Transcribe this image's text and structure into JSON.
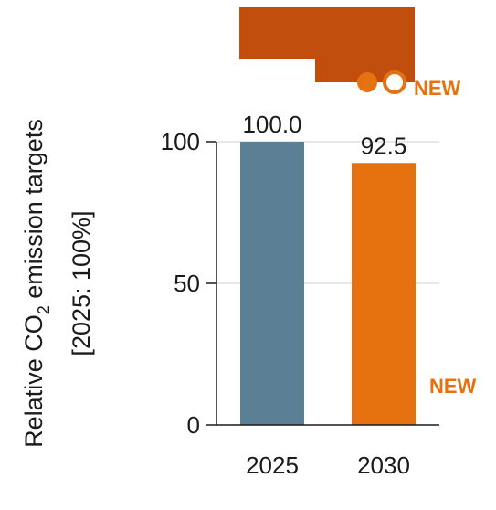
{
  "chart_data": {
    "type": "bar",
    "title": "",
    "xlabel": "",
    "ylabel": "Relative CO2 emission targets",
    "ylabel_main": "Relative CO",
    "ylabel_sub": "2",
    "ylabel_tail": " emission targets",
    "ylabel_line2": "[2025: 100%]",
    "categories": [
      "2025",
      "2030"
    ],
    "values": [
      100.0,
      92.5
    ],
    "value_labels": [
      "100.0",
      "92.5"
    ],
    "bar_colors": [
      "#5b7f94",
      "#e6720f"
    ],
    "ylim": [
      0,
      100
    ],
    "yticks": [
      0,
      50,
      100
    ],
    "ytick_labels": [
      "0",
      "50",
      "100"
    ],
    "grid": true
  },
  "badges": {
    "new_top": "NEW",
    "new_bottom": "NEW",
    "color": "#e6720f"
  },
  "truck_icon": {
    "name": "truck-icon",
    "body_color": "#c24e0d",
    "wheel_color": "#e6720f"
  }
}
